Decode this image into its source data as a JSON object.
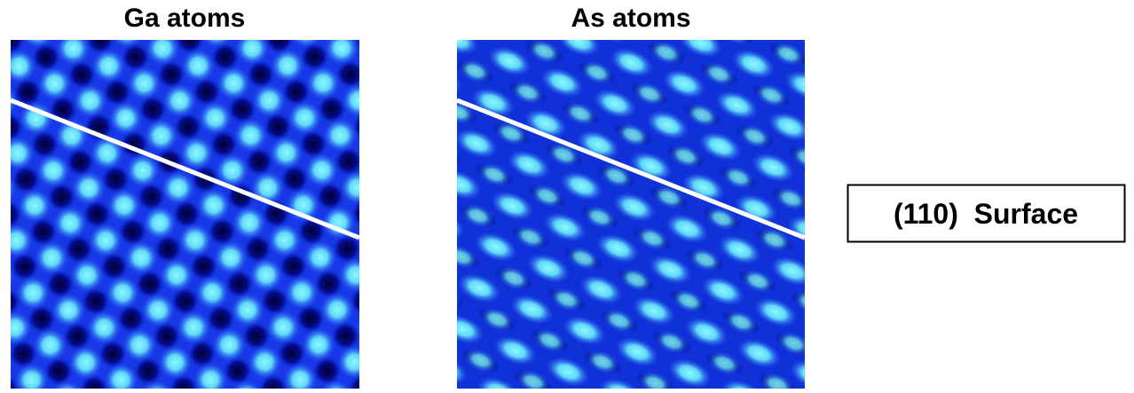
{
  "panels": [
    {
      "title": "Ga atoms"
    },
    {
      "title": "As atoms"
    }
  ],
  "label": "(110)  Surface"
}
